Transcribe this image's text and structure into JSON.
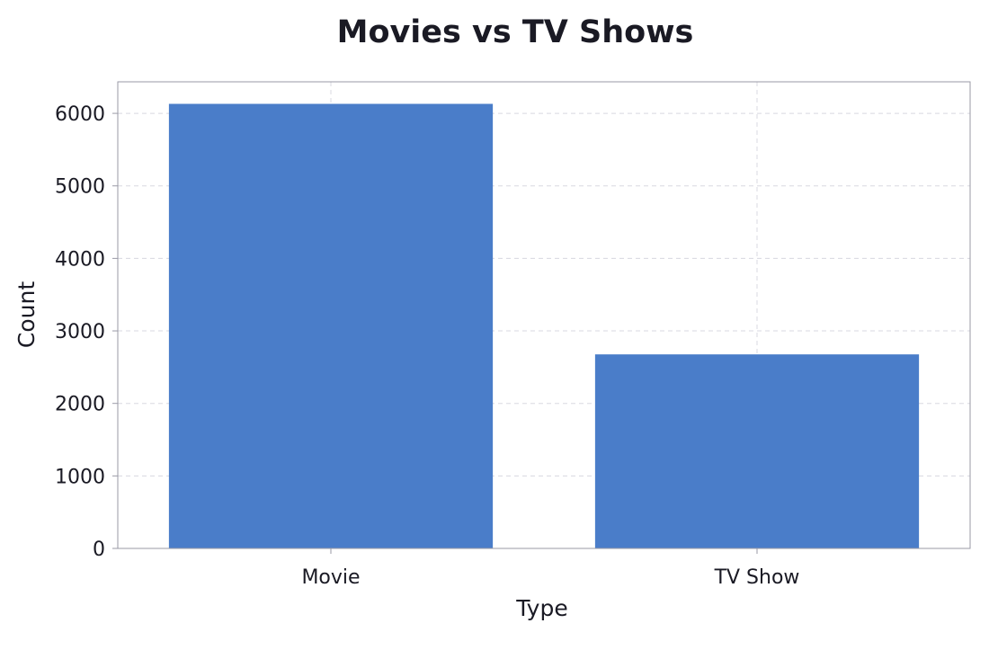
{
  "chart_data": {
    "type": "bar",
    "title": "Movies vs TV Shows",
    "xlabel": "Type",
    "ylabel": "Count",
    "categories": [
      "Movie",
      "TV Show"
    ],
    "values": [
      6131,
      2676
    ],
    "ylim": [
      0,
      6435
    ],
    "yticks": [
      0,
      1000,
      2000,
      3000,
      4000,
      5000,
      6000
    ],
    "grid": true,
    "legend": "none",
    "bar_color": "#4a7dc9",
    "grid_color": "#d8d8e0",
    "frame_color": "#9a9aa6",
    "text_color": "#1a1a24"
  }
}
